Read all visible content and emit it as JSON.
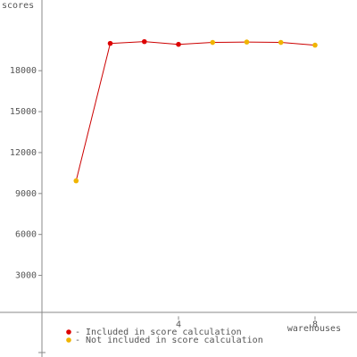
{
  "chart_data": {
    "type": "line",
    "y_label": "scores",
    "x_label": "warehouses",
    "x": [
      1,
      2,
      3,
      4,
      5,
      6,
      7,
      8
    ],
    "series": [
      {
        "name": "- Included in score calculation",
        "color": "#dd0000",
        "values": [
          null,
          20000,
          20130,
          19930,
          null,
          null,
          null,
          null
        ]
      },
      {
        "name": "- Not included in score calculation",
        "color": "#f0b400",
        "values": [
          9930,
          null,
          null,
          null,
          20070,
          20100,
          20070,
          19870
        ]
      }
    ],
    "line_color": "#cc0000",
    "xlim": [
      -1.23,
      9.23
    ],
    "ylim": [
      -2980,
      23180
    ],
    "xticks": [
      4,
      8
    ],
    "yticks": [
      3000,
      6000,
      9000,
      12000,
      15000,
      18000
    ]
  }
}
